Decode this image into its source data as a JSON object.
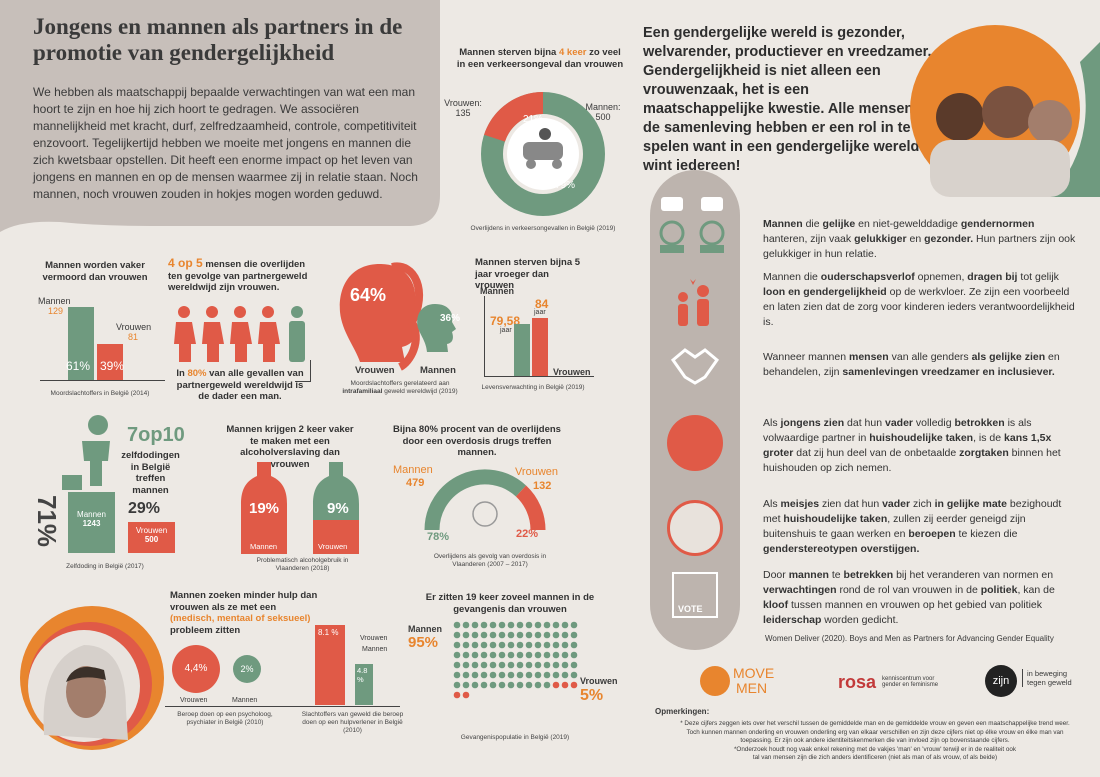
{
  "title": "Jongens en mannen als partners in de promotie van gendergelijkheid",
  "intro": "We hebben als maatschappij bepaalde verwachtingen van wat een man hoort te zijn en hoe hij zich hoort te gedragen. We associëren mannelijkheid met kracht, durf, zelfredzaamheid, controle, competitiviteit enzovoort. Tegelijkertijd hebben we moeite met jongens en mannen die zich kwetsbaar opstellen. Dit heeft een enorme impact op het leven van jongens en mannen en op de mensen waarmee zij in relatie staan. Noch mannen, noch vrouwen zouden in hokjes mogen worden geduwd.",
  "traffic": {
    "h1": "Mannen sterven bijna ",
    "h2": "4 keer",
    "h3": " zo veel in een verkeersongeval dan vrouwen",
    "women_label": "Vrouwen:",
    "women": "135",
    "men_label": "Mannen:",
    "men": "500",
    "pct_w": "21%",
    "pct_m": "79%",
    "caption": "Overlijdens in verkeersongevallen in België (2019)"
  },
  "murder": {
    "h": "Mannen worden vaker vermoord dan vrouwen",
    "men_label": "Mannen",
    "men": "129",
    "women_label": "Vrouwen",
    "women": "81",
    "pct_m": "61%",
    "pct_w": "39%",
    "caption": "Moordslachtoffers in België (2014)"
  },
  "partner": {
    "h1": "4 op 5",
    "h2": " mensen die overlijden ten gevolge van partnergeweld wereldwijd zijn vrouwen.",
    "b1": "In ",
    "b2": "80%",
    "b3": " van alle gevallen van partnergeweld wereldwijd is de dader een man."
  },
  "intra": {
    "pct_w": "64%",
    "pct_m": "36%",
    "w": "Vrouwen",
    "m": "Mannen",
    "caption1": "Moordslachtoffers gerelateerd aan ",
    "caption2": "intrafamiliaal",
    "caption3": " geweld wereldwijd (2019)"
  },
  "life": {
    "h": "Mannen sterven bijna 5 jaar vroeger dan vrouwen",
    "men_label": "Mannen",
    "men": "79,58",
    "men_unit": "jaar",
    "women": "84",
    "women_unit": "jaar",
    "women_label": "Vrouwen",
    "caption": "Levensverwachting in België (2019)"
  },
  "suicide": {
    "big": "7op10",
    "t": "zelfdodingen in België treffen mannen",
    "pct_m": "71%",
    "pct_w": "29%",
    "men_label": "Mannen",
    "men": "1243",
    "women_label": "Vrouwen",
    "women": "500",
    "caption": "Zelfdoding in België (2017)"
  },
  "alcohol": {
    "h": "Mannen krijgen 2 keer vaker te maken met een alcoholverslaving dan vrouwen",
    "pct_m": "19%",
    "pct_w": "9%",
    "m": "Mannen",
    "w": "Vrouwen",
    "caption": "Problematisch alcoholgebruik in Vlaanderen (2018)"
  },
  "overdose": {
    "h": "Bijna 80% procent van de overlijdens door een overdosis drugs treffen mannen.",
    "men_label": "Mannen",
    "men": "479",
    "women_label": "Vrouwen",
    "women": "132",
    "pct_m": "78%",
    "pct_w": "22%",
    "caption": "Overlijdens als gevolg van overdosis in Vlaanderen (2007 – 2017)"
  },
  "help": {
    "h1": "Mannen zoeken minder hulp dan vrouwen als ze met een ",
    "h2": "(medisch, mentaal of seksueel)",
    "h3": " probleem zitten",
    "pct_w": "4,4%",
    "pct_m": "2%",
    "w": "Vrouwen",
    "m": "Mannen",
    "caption": "Beroep doen op een psycholoog, psychiater in België (2010)"
  },
  "slacht": {
    "pct_w": "8.1 %",
    "pct_m": "4.8 %",
    "w": "Vrouwen",
    "m": "Mannen",
    "caption": "Slachtoffers van geweld die beroep doen op een hulpverlener in België (2010)"
  },
  "prison": {
    "h": "Er zitten 19 keer zoveel mannen in de gevangenis dan vrouwen",
    "men_label": "Mannen",
    "men": "95%",
    "women_label": "Vrouwen",
    "women": "5%",
    "caption": "Gevangenispopulatie in België (2019)"
  },
  "right_head": "Een gendergelijke wereld is gezonder, welvarender, productiever en vreedzamer. Gendergelijkheid is niet alleen een vrouwenzaak, het is een maatschappelijke kwestie. Alle mensen in de samenleving hebben er een rol in te spelen want in een gendergelijke wereld wint iedereen!",
  "p1": [
    [
      "b",
      "Mannen"
    ],
    [
      "n",
      " die "
    ],
    [
      "b",
      "gelijke"
    ],
    [
      "n",
      " en niet-gewelddadige "
    ],
    [
      "b",
      "gendernormen"
    ],
    [
      "n",
      " hanteren, zijn vaak "
    ],
    [
      "b",
      "gelukkiger"
    ],
    [
      "n",
      " en "
    ],
    [
      "b",
      "gezonder."
    ],
    [
      "n",
      " Hun partners zijn ook gelukkiger in hun relatie."
    ]
  ],
  "p2": [
    [
      "n",
      "Mannen die "
    ],
    [
      "b",
      "ouderschapsverlof"
    ],
    [
      "n",
      " opnemen, "
    ],
    [
      "b",
      "dragen bij"
    ],
    [
      "n",
      " tot gelijk "
    ],
    [
      "b",
      "loon en gendergelijkheid"
    ],
    [
      "n",
      " op de werkvloer. Ze zijn een voorbeeld en laten zien dat de zorg voor kinderen ieders verantwoordelijkheid is."
    ]
  ],
  "p3": [
    [
      "n",
      "Wanneer mannen "
    ],
    [
      "b",
      "mensen"
    ],
    [
      "n",
      " van alle genders "
    ],
    [
      "b",
      "als gelijke zien"
    ],
    [
      "n",
      " en behandelen, zijn "
    ],
    [
      "b",
      "samenlevingen vreedzamer en inclusiever."
    ]
  ],
  "p4": [
    [
      "n",
      "Als "
    ],
    [
      "b",
      "jongens zien"
    ],
    [
      "n",
      " dat hun "
    ],
    [
      "b",
      "vader"
    ],
    [
      "n",
      " volledig "
    ],
    [
      "b",
      "betrokken"
    ],
    [
      "n",
      " is als volwaardige partner in "
    ],
    [
      "b",
      "huishoudelijke taken"
    ],
    [
      "n",
      ", is de "
    ],
    [
      "b",
      "kans 1,5x groter"
    ],
    [
      "n",
      " dat zij hun deel van de onbetaalde "
    ],
    [
      "b",
      "zorgtaken"
    ],
    [
      "n",
      " binnen het huishouden op zich nemen."
    ]
  ],
  "p5": [
    [
      "n",
      "Als "
    ],
    [
      "b",
      "meisjes"
    ],
    [
      "n",
      " zien dat hun "
    ],
    [
      "b",
      "vader"
    ],
    [
      "n",
      " zich "
    ],
    [
      "b",
      "in gelijke mate"
    ],
    [
      "n",
      " bezighoudt met "
    ],
    [
      "b",
      "huishoudelijke taken"
    ],
    [
      "n",
      ", zullen zij eerder geneigd zijn buitenshuis te gaan werken en "
    ],
    [
      "b",
      "beroepen"
    ],
    [
      "n",
      " te kiezen die "
    ],
    [
      "b",
      "genderstereotypen overstijgen."
    ]
  ],
  "p6": [
    [
      "n",
      "Door "
    ],
    [
      "b",
      "mannen"
    ],
    [
      "n",
      " te "
    ],
    [
      "b",
      "betrekken"
    ],
    [
      "n",
      " bij het veranderen van normen en "
    ],
    [
      "b",
      "verwachtingen"
    ],
    [
      "n",
      " rond de rol van vrouwen in de "
    ],
    [
      "b",
      "politiek"
    ],
    [
      "n",
      ", kan de "
    ],
    [
      "b",
      "kloof"
    ],
    [
      "n",
      " tussen mannen en vrouwen op het gebied van politiek "
    ],
    [
      "b",
      "leiderschap"
    ],
    [
      "n",
      " worden gedicht."
    ]
  ],
  "source": "Women Deliver (2020). Boys and Men as Partners for Advancing Gender Equality",
  "vote": "VOTE",
  "logos": {
    "move1": "MOVE",
    "move2": "MEN",
    "rosa": "rosa",
    "rosa_sub": "kenniscentrum voor gender en feminisme",
    "zijn": "zijn",
    "zijn_sub": "in beweging tegen geweld"
  },
  "remarks": {
    "title": "Opmerkingen:",
    "l1": "* Deze cijfers zeggen iets over het verschil tussen de gemiddelde man en de gemiddelde vrouw en geven een maatschappelijke trend weer.",
    "l2": "Toch kunnen mannen onderling en vrouwen onderling erg van elkaar verschillen en zijn deze cijfers niet op élke vrouw en élke man van",
    "l3": "toepassing. Er zijn ook andere identiteitskenmerken die van invloed zijn op bovenstaande cijfers.",
    "l4": "*Onderzoek houdt nog vaak enkel rekening met de vakjes 'man' en 'vrouw' terwijl er in de realiteit ook",
    "l5": "tal van mensen zijn die zich anders identificeren (niet als man of als vrouw, of als beide)"
  },
  "colors": {
    "red": "#e05a47",
    "green": "#6f9a7f",
    "orange": "#e8852e",
    "taupe": "#b4aba6"
  }
}
